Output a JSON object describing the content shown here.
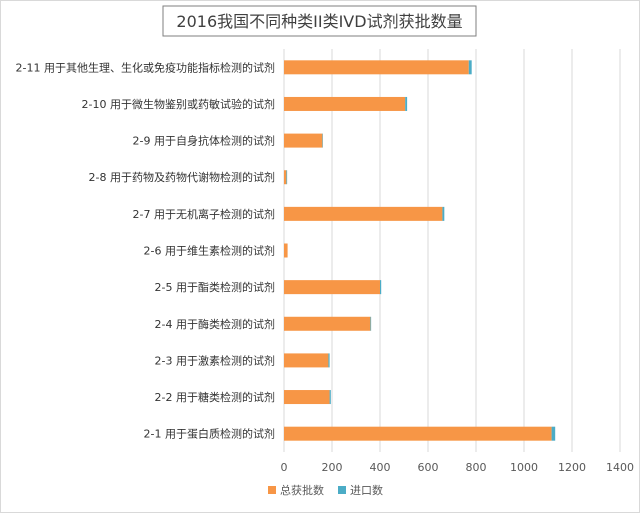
{
  "chart_data": {
    "type": "bar",
    "orientation": "horizontal",
    "stacked": true,
    "title": "2016我国不同种类II类IVD试剂获批数量",
    "xlabel": "",
    "ylabel": "",
    "xlim": [
      0,
      1400
    ],
    "xticks": [
      0,
      200,
      400,
      600,
      800,
      1000,
      1200,
      1400
    ],
    "grid": "vertical",
    "legend_position": "bottom",
    "categories": [
      "2-11 用于其他生理、生化或免疫功能指标检测的试剂",
      "2-10 用于微生物鉴别或药敏试验的试剂",
      "2-9 用于自身抗体检测的试剂",
      "2-8 用于药物及药物代谢物检测的试剂",
      "2-7 用于无机离子检测的试剂",
      "2-6 用于维生素检测的试剂",
      "2-5 用于酯类检测的试剂",
      "2-4 用于酶类检测的试剂",
      "2-3 用于激素检测的试剂",
      "2-2 用于糖类检测的试剂",
      "2-1 用于蛋白质检测的试剂"
    ],
    "series": [
      {
        "name": "总获批数",
        "color": "#f79646",
        "values": [
          770,
          505,
          160,
          10,
          660,
          15,
          400,
          360,
          185,
          190,
          1115
        ]
      },
      {
        "name": "进口数",
        "color": "#4bacc6",
        "values": [
          12,
          8,
          2,
          3,
          8,
          0,
          5,
          3,
          5,
          5,
          15
        ]
      }
    ]
  }
}
